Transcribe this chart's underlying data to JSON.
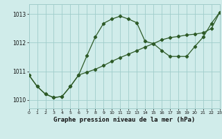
{
  "xlabel": "Graphe pression niveau de la mer (hPa)",
  "bg_color": "#d0ecea",
  "grid_color": "#a0ccca",
  "line_color": "#2d5a27",
  "xlim": [
    0,
    23
  ],
  "ylim": [
    1009.7,
    1013.35
  ],
  "yticks": [
    1010,
    1011,
    1012,
    1013
  ],
  "xticks": [
    0,
    1,
    2,
    3,
    4,
    5,
    6,
    7,
    8,
    9,
    10,
    11,
    12,
    13,
    14,
    15,
    16,
    17,
    18,
    19,
    20,
    21,
    22,
    23
  ],
  "curve1_x": [
    0,
    1,
    2,
    3,
    4,
    5,
    6,
    7,
    8,
    9,
    10,
    11,
    12,
    13,
    14,
    15,
    16,
    17,
    18,
    19,
    20,
    21,
    22,
    23
  ],
  "curve1_y": [
    1010.87,
    1010.47,
    1010.2,
    1010.08,
    1010.12,
    1010.47,
    1010.87,
    1011.55,
    1012.2,
    1012.68,
    1012.83,
    1012.93,
    1012.83,
    1012.7,
    1012.05,
    1011.97,
    1011.73,
    1011.52,
    1011.52,
    1011.52,
    1011.87,
    1012.2,
    1012.68,
    1013.07
  ],
  "curve2_x": [
    0,
    1,
    2,
    3,
    4,
    5,
    6,
    7,
    8,
    9,
    10,
    11,
    12,
    13,
    14,
    15,
    16,
    17,
    18,
    19,
    20,
    21,
    22,
    23
  ],
  "curve2_y": [
    1010.87,
    1010.47,
    1010.2,
    1010.08,
    1010.12,
    1010.47,
    1010.87,
    1010.97,
    1011.07,
    1011.2,
    1011.35,
    1011.48,
    1011.6,
    1011.72,
    1011.85,
    1011.97,
    1012.1,
    1012.18,
    1012.22,
    1012.27,
    1012.3,
    1012.35,
    1012.5,
    1013.07
  ]
}
